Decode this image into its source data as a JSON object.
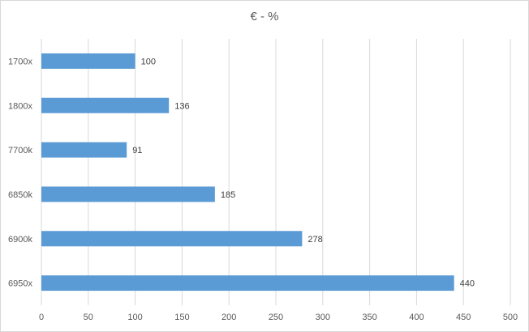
{
  "chart_data": {
    "type": "bar",
    "orientation": "horizontal",
    "title": "€ - %",
    "categories": [
      "1700x",
      "1800x",
      "7700k",
      "6850k",
      "6900k",
      "6950x"
    ],
    "values": [
      100,
      136,
      91,
      185,
      278,
      440
    ],
    "xlim": [
      0,
      500
    ],
    "x_ticks": [
      0,
      50,
      100,
      150,
      200,
      250,
      300,
      350,
      400,
      450,
      500
    ],
    "grid": "vertical",
    "bar_color": "#5b9bd5",
    "data_labels": true
  }
}
